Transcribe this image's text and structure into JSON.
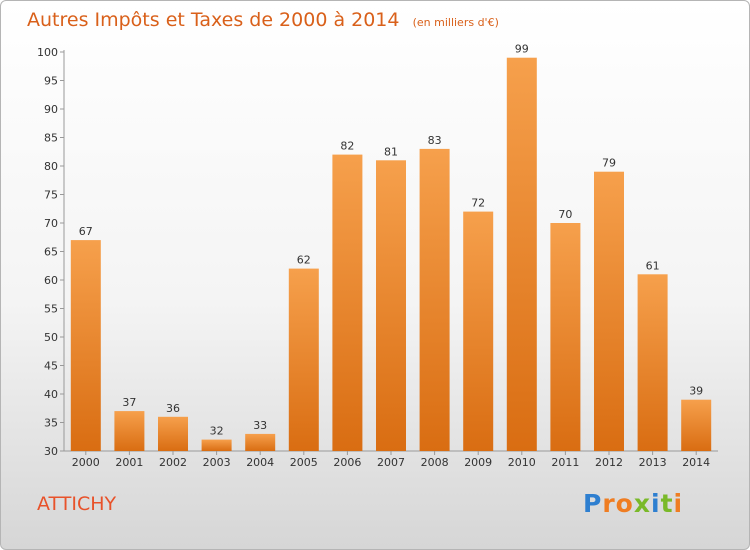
{
  "chart_data": {
    "type": "bar",
    "title": "Autres Impôts et Taxes de 2000 à 2014",
    "unit": "(en milliers d'€)",
    "categories": [
      "2000",
      "2001",
      "2002",
      "2003",
      "2004",
      "2005",
      "2006",
      "2007",
      "2008",
      "2009",
      "2010",
      "2011",
      "2012",
      "2013",
      "2014"
    ],
    "values": [
      67,
      37,
      36,
      32,
      33,
      62,
      82,
      81,
      83,
      72,
      99,
      70,
      79,
      61,
      39
    ],
    "ylim": [
      30,
      100
    ],
    "yticks": [
      30,
      35,
      40,
      45,
      50,
      55,
      60,
      65,
      70,
      75,
      80,
      85,
      90,
      95,
      100
    ],
    "grid": false,
    "bar_color": "#f0923a"
  },
  "footer": {
    "place": "ATTICHY",
    "brand_letters": [
      {
        "ch": "P",
        "color": "#2e7fd0"
      },
      {
        "ch": "r",
        "color": "#ef7d22"
      },
      {
        "ch": "o",
        "color": "#ef7d22"
      },
      {
        "ch": "x",
        "color": "#7ab929"
      },
      {
        "ch": "i",
        "color": "#2e7fd0"
      },
      {
        "ch": "t",
        "color": "#7ab929"
      },
      {
        "ch": "i",
        "color": "#ef7d22"
      }
    ]
  }
}
